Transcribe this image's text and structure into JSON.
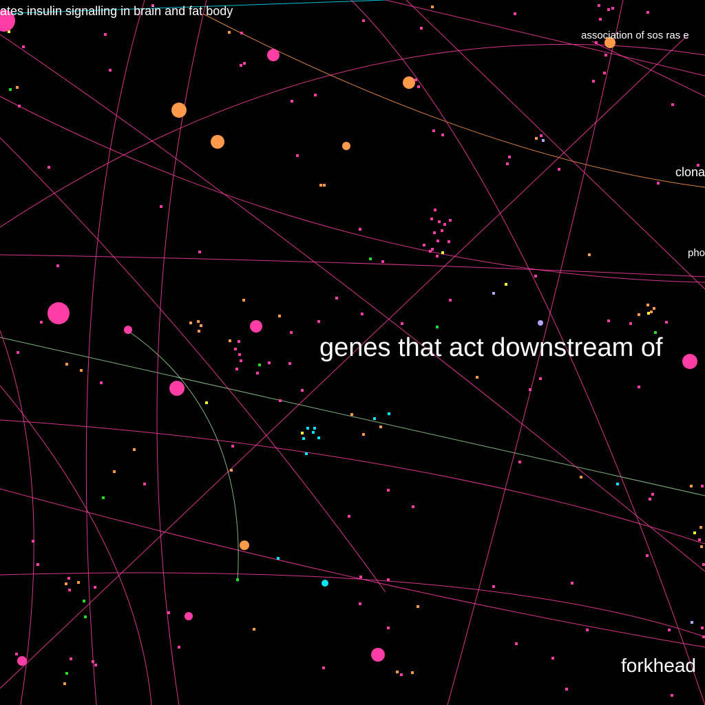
{
  "labels": [
    "ates insulin signalling in brain and fat body",
    "association of sos ras e",
    "clona",
    "pho",
    "genes that act downstream of",
    "forkhead"
  ],
  "colors": {
    "background": "#000000",
    "magenta": "#ff3ea5",
    "orange": "#ff9a4a",
    "cyan": "#00e5ff",
    "green": "#22dd22",
    "yellow": "#ffff33",
    "lavender": "#b8a4ff",
    "pale_green": "#b8ffb0",
    "text": "#ffffff"
  }
}
